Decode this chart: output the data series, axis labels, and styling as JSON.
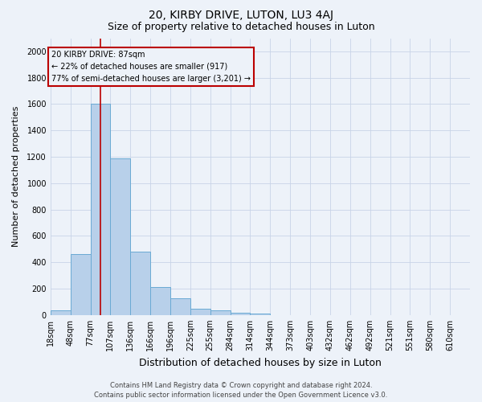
{
  "title": "20, KIRBY DRIVE, LUTON, LU3 4AJ",
  "subtitle": "Size of property relative to detached houses in Luton",
  "xlabel": "Distribution of detached houses by size in Luton",
  "ylabel": "Number of detached properties",
  "footer_line1": "Contains HM Land Registry data © Crown copyright and database right 2024.",
  "footer_line2": "Contains public sector information licensed under the Open Government Licence v3.0.",
  "annotation_line1": "20 KIRBY DRIVE: 87sqm",
  "annotation_line2": "← 22% of detached houses are smaller (917)",
  "annotation_line3": "77% of semi-detached houses are larger (3,201) →",
  "property_size_bin": 2,
  "bar_color": "#b8d0ea",
  "bar_edge_color": "#6aaad4",
  "vline_color": "#bb0000",
  "annotation_box_edge": "#bb0000",
  "grid_color": "#c8d4e8",
  "bg_color": "#edf2f9",
  "categories": [
    "18sqm",
    "48sqm",
    "77sqm",
    "107sqm",
    "136sqm",
    "166sqm",
    "196sqm",
    "225sqm",
    "255sqm",
    "284sqm",
    "314sqm",
    "344sqm",
    "373sqm",
    "403sqm",
    "432sqm",
    "462sqm",
    "492sqm",
    "521sqm",
    "551sqm",
    "580sqm",
    "610sqm"
  ],
  "values": [
    35,
    460,
    1600,
    1190,
    480,
    215,
    125,
    50,
    35,
    20,
    10,
    0,
    0,
    0,
    0,
    0,
    0,
    0,
    0,
    0,
    0
  ],
  "ylim": [
    0,
    2100
  ],
  "yticks": [
    0,
    200,
    400,
    600,
    800,
    1000,
    1200,
    1400,
    1600,
    1800,
    2000
  ],
  "title_fontsize": 10,
  "subtitle_fontsize": 9,
  "xlabel_fontsize": 9,
  "ylabel_fontsize": 8,
  "tick_fontsize": 7,
  "footer_fontsize": 6
}
